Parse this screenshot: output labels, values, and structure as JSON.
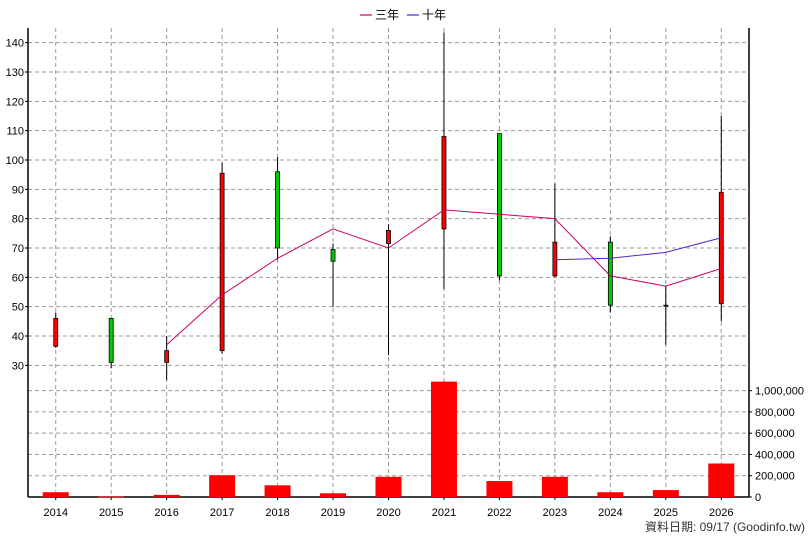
{
  "chart_data": {
    "type": "candlestick",
    "legend": [
      {
        "name": "三年",
        "color": "#cc0066"
      },
      {
        "name": "十年",
        "color": "#5522cc"
      }
    ],
    "years": [
      "2014",
      "2015",
      "2016",
      "2017",
      "2018",
      "2019",
      "2020",
      "2021",
      "2022",
      "2023",
      "2024",
      "2025",
      "2026"
    ],
    "price_axis": {
      "ylim": [
        25,
        145
      ],
      "ticks": [
        30,
        40,
        50,
        60,
        70,
        80,
        90,
        100,
        110,
        120,
        130,
        140
      ]
    },
    "volume_axis": {
      "ylim": [
        0,
        1100000
      ],
      "ticks": [
        0,
        200000,
        400000,
        600000,
        800000,
        1000000
      ],
      "tick_labels": [
        "0",
        "200,000",
        "400,000",
        "600,000",
        "800,000",
        "1,000,000"
      ]
    },
    "candles": [
      {
        "year": "2014",
        "open": 36.5,
        "close": 46,
        "high": 48,
        "low": 36
      },
      {
        "year": "2015",
        "open": 46,
        "close": 31,
        "high": 46,
        "low": 29
      },
      {
        "year": "2016",
        "open": 31,
        "close": 35,
        "high": 40,
        "low": 25
      },
      {
        "year": "2017",
        "open": 35,
        "close": 95.5,
        "high": 99,
        "low": 34
      },
      {
        "year": "2018",
        "open": 96,
        "close": 70,
        "high": 101,
        "low": 66
      },
      {
        "year": "2019",
        "open": 69.5,
        "close": 65.5,
        "high": 71.5,
        "low": 50
      },
      {
        "year": "2020",
        "open": 71.5,
        "close": 76,
        "high": 78,
        "low": 33.5
      },
      {
        "year": "2021",
        "open": 76.5,
        "close": 108,
        "high": 143.5,
        "low": 56
      },
      {
        "year": "2022",
        "open": 109,
        "close": 60.5,
        "high": 109,
        "low": 59
      },
      {
        "year": "2023",
        "open": 60.5,
        "close": 72,
        "high": 92,
        "low": 60
      },
      {
        "year": "2024",
        "open": 72,
        "close": 50.5,
        "high": 74,
        "low": 48
      },
      {
        "year": "2025",
        "open": 50.5,
        "close": 50.5,
        "high": 57,
        "low": 37
      },
      {
        "year": "2026",
        "open": 51,
        "close": 89,
        "high": 115,
        "low": 45
      }
    ],
    "volume": [
      {
        "year": "2014",
        "value": 45000
      },
      {
        "year": "2015",
        "value": 5000
      },
      {
        "year": "2016",
        "value": 20000
      },
      {
        "year": "2017",
        "value": 205000
      },
      {
        "year": "2018",
        "value": 110000
      },
      {
        "year": "2019",
        "value": 35000
      },
      {
        "year": "2020",
        "value": 190000
      },
      {
        "year": "2021",
        "value": 1085000
      },
      {
        "year": "2022",
        "value": 150000
      },
      {
        "year": "2023",
        "value": 190000
      },
      {
        "year": "2024",
        "value": 45000
      },
      {
        "year": "2025",
        "value": 65000
      },
      {
        "year": "2026",
        "value": 315000
      }
    ],
    "ma_3y": [
      {
        "year": "2016",
        "value": 37
      },
      {
        "year": "2017",
        "value": 54
      },
      {
        "year": "2018",
        "value": 66.5
      },
      {
        "year": "2019",
        "value": 76.5
      },
      {
        "year": "2020",
        "value": 70
      },
      {
        "year": "2021",
        "value": 83
      },
      {
        "year": "2022",
        "value": 81.5
      },
      {
        "year": "2023",
        "value": 80
      },
      {
        "year": "2024",
        "value": 60.5
      },
      {
        "year": "2025",
        "value": 57
      },
      {
        "year": "2026",
        "value": 63
      }
    ],
    "ma_10y": [
      {
        "year": "2023",
        "value": 66
      },
      {
        "year": "2024",
        "value": 66.5
      },
      {
        "year": "2025",
        "value": 68.5
      },
      {
        "year": "2026",
        "value": 73.5
      }
    ],
    "colors": {
      "up": "#ff0000",
      "down": "#00cc00",
      "volume": "#ff0000",
      "grid": "#999999",
      "wick": "#000000"
    },
    "grid": true,
    "legend_position": "top-center"
  },
  "source_text": "資料日期: 09/17 (Goodinfo.tw)"
}
